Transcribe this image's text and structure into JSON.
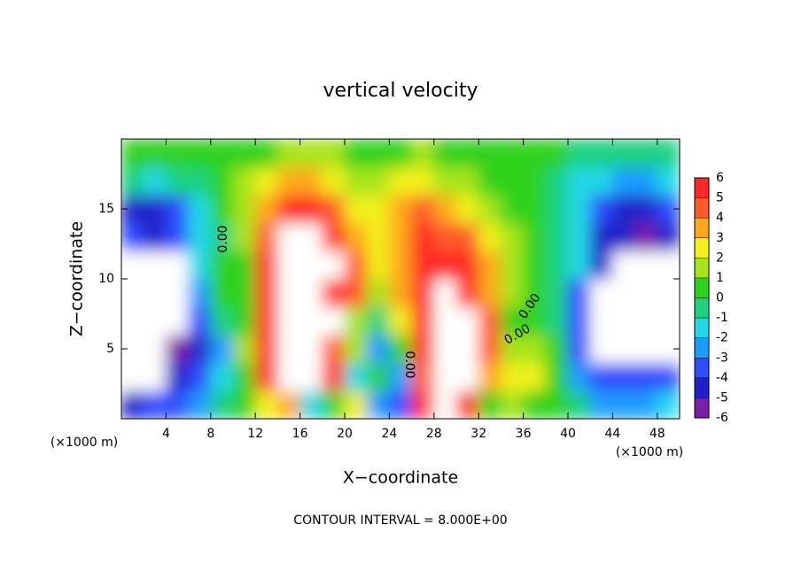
{
  "chart_data": {
    "type": "heatmap",
    "title": "vertical velocity",
    "x_label": "X−coordinate",
    "y_label": "Z−coordinate",
    "x_unit_labels": [
      "(×1000 m)",
      "(×1000 m)"
    ],
    "footer": "CONTOUR INTERVAL = 8.000E+00",
    "contour_labels": [
      "0.00",
      "0.00",
      "0.00",
      "0.00"
    ],
    "x": [
      1,
      3,
      5,
      7,
      9,
      11,
      13,
      15,
      17,
      19,
      21,
      23,
      25,
      27,
      29,
      31,
      33,
      35,
      37,
      39,
      41,
      43,
      45,
      47,
      49
    ],
    "y": [
      1,
      3,
      5,
      7,
      9,
      11,
      13,
      15,
      17,
      19
    ],
    "values": [
      [
        -5,
        -4,
        -4,
        -3,
        -1,
        0,
        2,
        3,
        -2,
        0,
        2,
        -3,
        -4,
        5,
        8,
        5,
        0,
        1,
        0,
        0,
        -1,
        -3,
        -3,
        -3,
        -2
      ],
      [
        -8,
        -8,
        -5,
        -4,
        -2,
        0,
        5,
        8,
        8,
        5,
        -2,
        0,
        -3,
        4,
        8,
        8,
        3,
        2,
        2,
        0,
        -3,
        -4,
        -4,
        -4,
        -4
      ],
      [
        -8,
        -8,
        -6,
        -5,
        -3,
        1,
        5,
        8,
        8,
        4,
        1,
        -3,
        0,
        5,
        8,
        8,
        4,
        1,
        1,
        0,
        -4,
        -8,
        -8,
        -8,
        -8
      ],
      [
        -8,
        -8,
        -8,
        -4,
        -1,
        0,
        5,
        8,
        8,
        8,
        1,
        -1,
        2,
        5,
        8,
        8,
        4,
        0,
        0,
        -1,
        -4,
        -8,
        -8,
        -8,
        -8
      ],
      [
        -8,
        -8,
        -8,
        -3,
        0,
        0,
        5,
        8,
        8,
        6,
        4,
        1,
        3,
        5,
        8,
        6,
        3,
        1,
        0,
        -1,
        -4,
        -8,
        -8,
        -8,
        -8
      ],
      [
        -8,
        -8,
        -8,
        -2,
        0,
        0,
        5,
        8,
        8,
        8,
        4,
        2,
        3,
        5,
        5,
        5,
        3,
        1,
        0,
        -1,
        -2,
        -5,
        -8,
        -8,
        -8
      ],
      [
        -4,
        -5,
        -4,
        -2,
        -1,
        1,
        4,
        8,
        8,
        5,
        3,
        2,
        3,
        5,
        4,
        4,
        2,
        1,
        0,
        -1,
        -2,
        -5,
        -5,
        -6,
        -5
      ],
      [
        -5,
        -5,
        -4,
        -2,
        0,
        1,
        3,
        5,
        5,
        4,
        2,
        2,
        3,
        4,
        3,
        2,
        1,
        0,
        0,
        -1,
        -2,
        -4,
        -5,
        -5,
        -4
      ],
      [
        -1,
        -2,
        -1,
        -1,
        0,
        1,
        2,
        3,
        3,
        2,
        1,
        1,
        2,
        2,
        1,
        1,
        0,
        0,
        0,
        -1,
        -2,
        -2,
        -3,
        -3,
        -2
      ],
      [
        0,
        0,
        0,
        0,
        0,
        0,
        0,
        1,
        1,
        1,
        0,
        0,
        0,
        1,
        0,
        0,
        0,
        0,
        0,
        0,
        -1,
        -1,
        -1,
        -1,
        -1
      ]
    ],
    "xlim": [
      0,
      50
    ],
    "xticks": [
      4,
      8,
      12,
      16,
      20,
      24,
      28,
      32,
      36,
      40,
      44,
      48
    ],
    "ylim": [
      0,
      20
    ],
    "yticks": [
      5,
      10,
      15
    ],
    "colorbar_ticks": [
      -6,
      -5,
      -4,
      -3,
      -2,
      -1,
      0,
      1,
      2,
      3,
      4,
      5,
      6
    ],
    "colors": [
      "#7b1fa8",
      "#2020c8",
      "#2f4cff",
      "#1e9cff",
      "#22d8e8",
      "#1fd080",
      "#2ed21e",
      "#a8e41e",
      "#f2f01e",
      "#ffa81e",
      "#ff5a2a",
      "#ff2828"
    ]
  }
}
